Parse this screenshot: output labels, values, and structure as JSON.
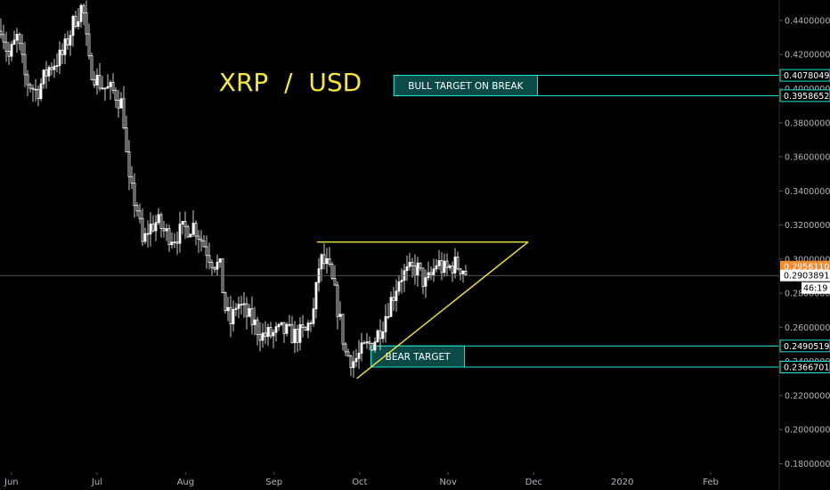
{
  "chart_data": {
    "type": "candlestick",
    "title": "XRP  /  USD",
    "price_axis": {
      "ylim": [
        0.175,
        0.452
      ],
      "ticks": [
        "0.44000000",
        "0.42000000",
        "0.40000000",
        "0.38000000",
        "0.36000000",
        "0.34000000",
        "0.32000000",
        "0.30000000",
        "0.28000000",
        "0.26000000",
        "0.24000000",
        "0.22000000",
        "0.20000000",
        "0.18000000"
      ],
      "tick_values": [
        0.44,
        0.42,
        0.4,
        0.38,
        0.36,
        0.34,
        0.32,
        0.3,
        0.28,
        0.26,
        0.24,
        0.22,
        0.2,
        0.18
      ]
    },
    "time_axis": {
      "labels": [
        "Jun",
        "Jul",
        "Aug",
        "Sep",
        "Oct",
        "Nov",
        "Dec",
        "2020",
        "Feb"
      ],
      "label_dates": [
        "2019-06-01",
        "2019-07-01",
        "2019-08-01",
        "2019-09-01",
        "2019-10-01",
        "2019-11-01",
        "2019-12-01",
        "2020-01-01",
        "2020-02-01"
      ],
      "range": [
        "2019-05-28",
        "2020-02-25"
      ]
    },
    "price_path": [
      [
        "2019-05-28",
        0.44
      ],
      [
        "2019-05-31",
        0.418
      ],
      [
        "2019-06-03",
        0.43
      ],
      [
        "2019-06-06",
        0.405
      ],
      [
        "2019-06-10",
        0.398
      ],
      [
        "2019-06-14",
        0.412
      ],
      [
        "2019-06-19",
        0.42
      ],
      [
        "2019-06-23",
        0.44
      ],
      [
        "2019-06-26",
        0.449
      ],
      [
        "2019-06-28",
        0.415
      ],
      [
        "2019-07-01",
        0.405
      ],
      [
        "2019-07-04",
        0.4
      ],
      [
        "2019-07-07",
        0.398
      ],
      [
        "2019-07-10",
        0.39
      ],
      [
        "2019-07-12",
        0.345
      ],
      [
        "2019-07-15",
        0.33
      ],
      [
        "2019-07-17",
        0.308
      ],
      [
        "2019-07-19",
        0.318
      ],
      [
        "2019-07-22",
        0.322
      ],
      [
        "2019-07-25",
        0.315
      ],
      [
        "2019-07-28",
        0.313
      ],
      [
        "2019-08-01",
        0.318
      ],
      [
        "2019-08-04",
        0.32
      ],
      [
        "2019-08-07",
        0.31
      ],
      [
        "2019-08-10",
        0.3
      ],
      [
        "2019-08-13",
        0.295
      ],
      [
        "2019-08-15",
        0.27
      ],
      [
        "2019-08-17",
        0.262
      ],
      [
        "2019-08-19",
        0.275
      ],
      [
        "2019-08-22",
        0.268
      ],
      [
        "2019-08-25",
        0.262
      ],
      [
        "2019-08-28",
        0.255
      ],
      [
        "2019-09-01",
        0.256
      ],
      [
        "2019-09-04",
        0.258
      ],
      [
        "2019-09-08",
        0.255
      ],
      [
        "2019-09-12",
        0.257
      ],
      [
        "2019-09-15",
        0.27
      ],
      [
        "2019-09-17",
        0.3
      ],
      [
        "2019-09-20",
        0.295
      ],
      [
        "2019-09-22",
        0.282
      ],
      [
        "2019-09-24",
        0.265
      ],
      [
        "2019-09-26",
        0.245
      ],
      [
        "2019-09-29",
        0.24
      ],
      [
        "2019-10-03",
        0.248
      ],
      [
        "2019-10-06",
        0.252
      ],
      [
        "2019-10-09",
        0.262
      ],
      [
        "2019-10-11",
        0.272
      ],
      [
        "2019-10-13",
        0.28
      ],
      [
        "2019-10-15",
        0.29
      ],
      [
        "2019-10-18",
        0.292
      ],
      [
        "2019-10-21",
        0.295
      ],
      [
        "2019-10-24",
        0.285
      ],
      [
        "2019-10-26",
        0.29
      ],
      [
        "2019-10-28",
        0.298
      ],
      [
        "2019-10-31",
        0.293
      ],
      [
        "2019-11-03",
        0.297
      ],
      [
        "2019-11-06",
        0.295
      ],
      [
        "2019-11-08",
        0.29
      ]
    ],
    "current_price_line": 0.29038911,
    "price_labels": [
      {
        "text": "0.40780490",
        "value": 0.4078049,
        "style": "zone"
      },
      {
        "text": "0.39586527",
        "value": 0.39586527,
        "style": "zone"
      },
      {
        "text": "0.29561109",
        "value": 0.29561109,
        "style": "last"
      },
      {
        "text": "0.29038911",
        "value": 0.29038911,
        "style": "plain"
      },
      {
        "text": "0.24905199",
        "value": 0.24905199,
        "style": "zone"
      },
      {
        "text": "0.23667014",
        "value": 0.23667014,
        "style": "zone"
      }
    ],
    "countdown": "46:19",
    "zones": [
      {
        "label": "BULL TARGET ON BREAK",
        "top": 0.4078049,
        "bottom": 0.39586527,
        "start": "2019-10-13"
      },
      {
        "label": "BEAR TARGET",
        "top": 0.24905199,
        "bottom": 0.23667014,
        "start": "2019-10-05"
      }
    ],
    "triangle": {
      "resistance": [
        [
          "2019-09-16",
          0.31
        ],
        [
          "2019-11-29",
          0.31
        ]
      ],
      "support": [
        [
          "2019-09-30",
          0.23
        ],
        [
          "2019-11-29",
          0.31
        ]
      ]
    },
    "colors": {
      "background": "#000000",
      "candles": "#ffffff",
      "title": "#f5e642",
      "triangle": "#f5e642",
      "zone": "#1de9d6",
      "zone_fill": "#0b4a47",
      "last_price": "#f68a2e",
      "axis_text": "#b2b5be"
    }
  }
}
